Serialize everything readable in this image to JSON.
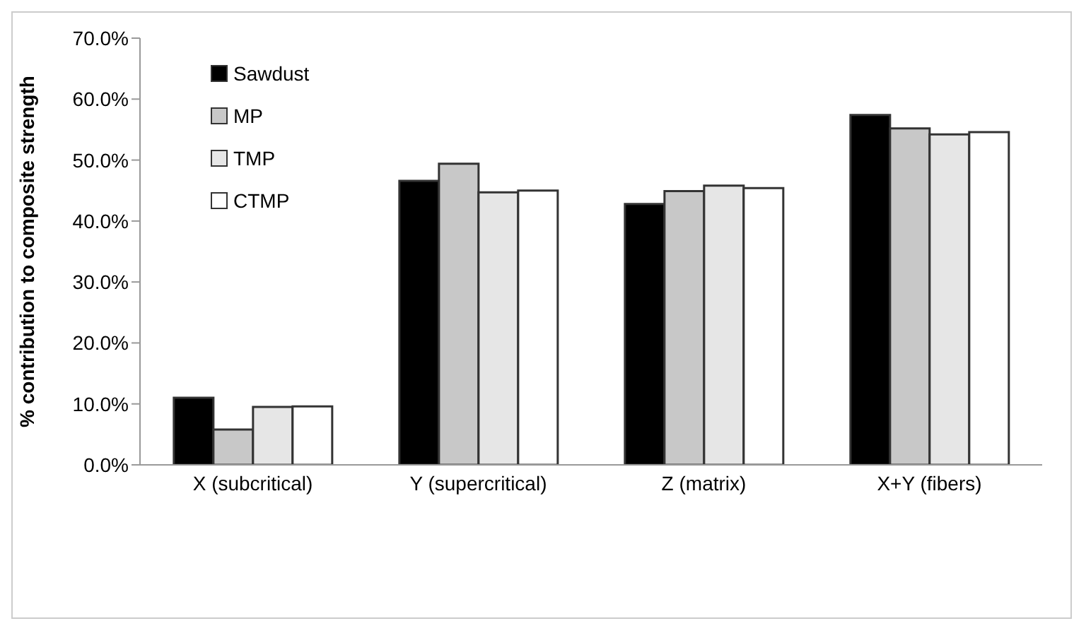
{
  "chart_data": {
    "type": "bar",
    "ylabel": "% contribution to composite strength",
    "categories": [
      "X (subcritical)",
      "Y (supercritical)",
      "Z (matrix)",
      "X+Y (fibers)"
    ],
    "series": [
      {
        "name": "Sawdust",
        "color": "#000000",
        "values": [
          11.0,
          46.6,
          42.8,
          57.4
        ]
      },
      {
        "name": "MP",
        "color": "#c8c8c8",
        "values": [
          5.8,
          49.4,
          44.9,
          55.2
        ]
      },
      {
        "name": "TMP",
        "color": "#e6e6e6",
        "values": [
          9.5,
          44.7,
          45.8,
          54.2
        ]
      },
      {
        "name": "CTMP",
        "color": "#ffffff",
        "values": [
          9.6,
          45.0,
          45.4,
          54.6
        ]
      }
    ],
    "ylim": [
      0,
      70
    ],
    "yticks": [
      {
        "value": 0,
        "label": "0.0%"
      },
      {
        "value": 10,
        "label": "10.0%"
      },
      {
        "value": 20,
        "label": "20.0%"
      },
      {
        "value": 30,
        "label": "30.0%"
      },
      {
        "value": 40,
        "label": "40.0%"
      },
      {
        "value": 50,
        "label": "50.0%"
      },
      {
        "value": 60,
        "label": "60.0%"
      },
      {
        "value": 70,
        "label": "70.0%"
      }
    ],
    "grid": false,
    "legend": "top left"
  }
}
